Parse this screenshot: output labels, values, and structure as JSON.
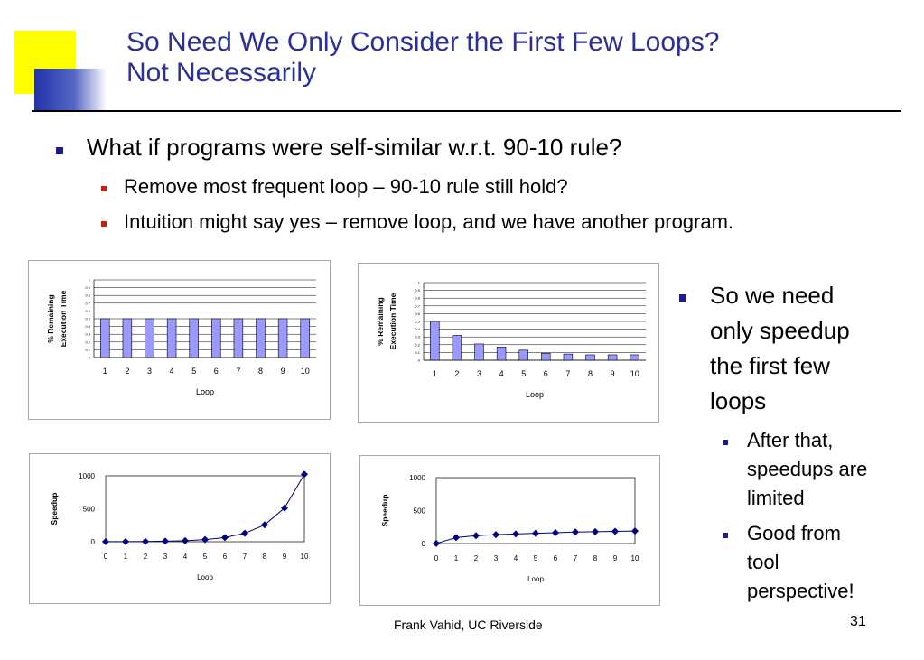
{
  "slide": {
    "title_line1": "So Need We Only Consider the First Few Loops?",
    "title_line2": "Not Necessarily",
    "bullets": [
      "What if programs were self-similar w.r.t. 90-10 rule?",
      "Remove most frequent loop – 90-10 rule still hold?",
      "Intuition might say yes – remove loop, and we have another program."
    ],
    "side_bullet_main_lines": [
      "So we need",
      "only speedup",
      "the first few",
      "loops"
    ],
    "side_sub1_lines": [
      "After that,",
      "speedups are",
      "limited"
    ],
    "side_sub2_lines": [
      "Good from",
      "tool",
      "perspective!"
    ],
    "footer": "Frank Vahid, UC Riverside",
    "page_number": "31",
    "colors": {
      "title": "#2a2f9b",
      "bar_fill": "#9999ff",
      "line": "#000080",
      "marker": "#000080",
      "deco_yellow": "#ffff00",
      "deco_blue": "#3344aa"
    }
  },
  "chart_data": [
    {
      "type": "bar",
      "xlabel": "Loop",
      "ylabel_lines": [
        "% Remaining",
        "Execution Time"
      ],
      "categories": [
        "1",
        "2",
        "3",
        "4",
        "5",
        "6",
        "7",
        "8",
        "9",
        "10"
      ],
      "values": [
        0.5,
        0.5,
        0.5,
        0.5,
        0.5,
        0.5,
        0.5,
        0.5,
        0.5,
        0.5
      ],
      "ylim": [
        0,
        1
      ],
      "yticks": [
        "0",
        "0.1",
        "0.2",
        "0.3",
        "0.4",
        "0.5",
        "0.6",
        "0.7",
        "0.8",
        "0.9",
        "1"
      ],
      "grid": true
    },
    {
      "type": "bar",
      "xlabel": "Loop",
      "ylabel_lines": [
        "% Remaining",
        "Execution Time"
      ],
      "categories": [
        "1",
        "2",
        "3",
        "4",
        "5",
        "6",
        "7",
        "8",
        "9",
        "10"
      ],
      "values": [
        0.5,
        0.32,
        0.21,
        0.17,
        0.13,
        0.09,
        0.08,
        0.07,
        0.07,
        0.07
      ],
      "ylim": [
        0,
        1
      ],
      "yticks": [
        "0",
        "0.1",
        "0.2",
        "0.3",
        "0.4",
        "0.5",
        "0.6",
        "0.7",
        "0.8",
        "0.9",
        "1"
      ],
      "grid": true
    },
    {
      "type": "line",
      "xlabel": "Loop",
      "ylabel": "Speedup",
      "x": [
        "0",
        "1",
        "2",
        "3",
        "4",
        "5",
        "6",
        "7",
        "8",
        "9",
        "10"
      ],
      "values": [
        1,
        2,
        4,
        8,
        16,
        32,
        64,
        128,
        256,
        512,
        1024
      ],
      "ylim": [
        0,
        1000
      ],
      "yticks": [
        "0",
        "500",
        "1000"
      ],
      "grid": false
    },
    {
      "type": "line",
      "xlabel": "Loop",
      "ylabel": "Speedup",
      "x": [
        "0",
        "1",
        "2",
        "3",
        "4",
        "5",
        "6",
        "7",
        "8",
        "9",
        "10"
      ],
      "values": [
        1,
        90,
        120,
        135,
        145,
        155,
        165,
        175,
        180,
        185,
        190
      ],
      "ylim": [
        0,
        1000
      ],
      "yticks": [
        "0",
        "500",
        "1000"
      ],
      "grid": false
    }
  ]
}
